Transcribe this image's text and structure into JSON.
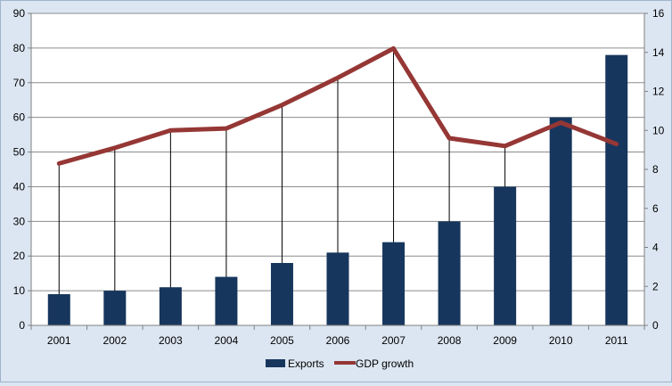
{
  "chart_data": {
    "type": "bar",
    "categories": [
      "2001",
      "2002",
      "2003",
      "2004",
      "2005",
      "2006",
      "2007",
      "2008",
      "2009",
      "2010",
      "2011"
    ],
    "series": [
      {
        "name": "Exports",
        "type": "bar",
        "axis": "left",
        "color": "#17365d",
        "values": [
          9,
          10,
          11,
          14,
          18,
          21,
          24,
          30,
          40,
          60,
          78
        ]
      },
      {
        "name": "GDP growth",
        "type": "line",
        "axis": "right",
        "color": "#953735",
        "values": [
          8.3,
          9.1,
          10.0,
          10.1,
          11.3,
          12.7,
          14.2,
          9.6,
          9.2,
          10.4,
          9.3
        ]
      }
    ],
    "y_left": {
      "min": 0,
      "max": 90,
      "step": 10,
      "ticks": [
        "0",
        "10",
        "20",
        "30",
        "40",
        "50",
        "60",
        "70",
        "80",
        "90"
      ]
    },
    "y_right": {
      "min": 0,
      "max": 16,
      "step": 2,
      "ticks": [
        "0",
        "2",
        "4",
        "6",
        "8",
        "10",
        "12",
        "14",
        "16"
      ]
    },
    "grid": true,
    "drop_lines": true,
    "legend_position": "bottom",
    "title": "",
    "xlabel": "",
    "ylabel": ""
  }
}
